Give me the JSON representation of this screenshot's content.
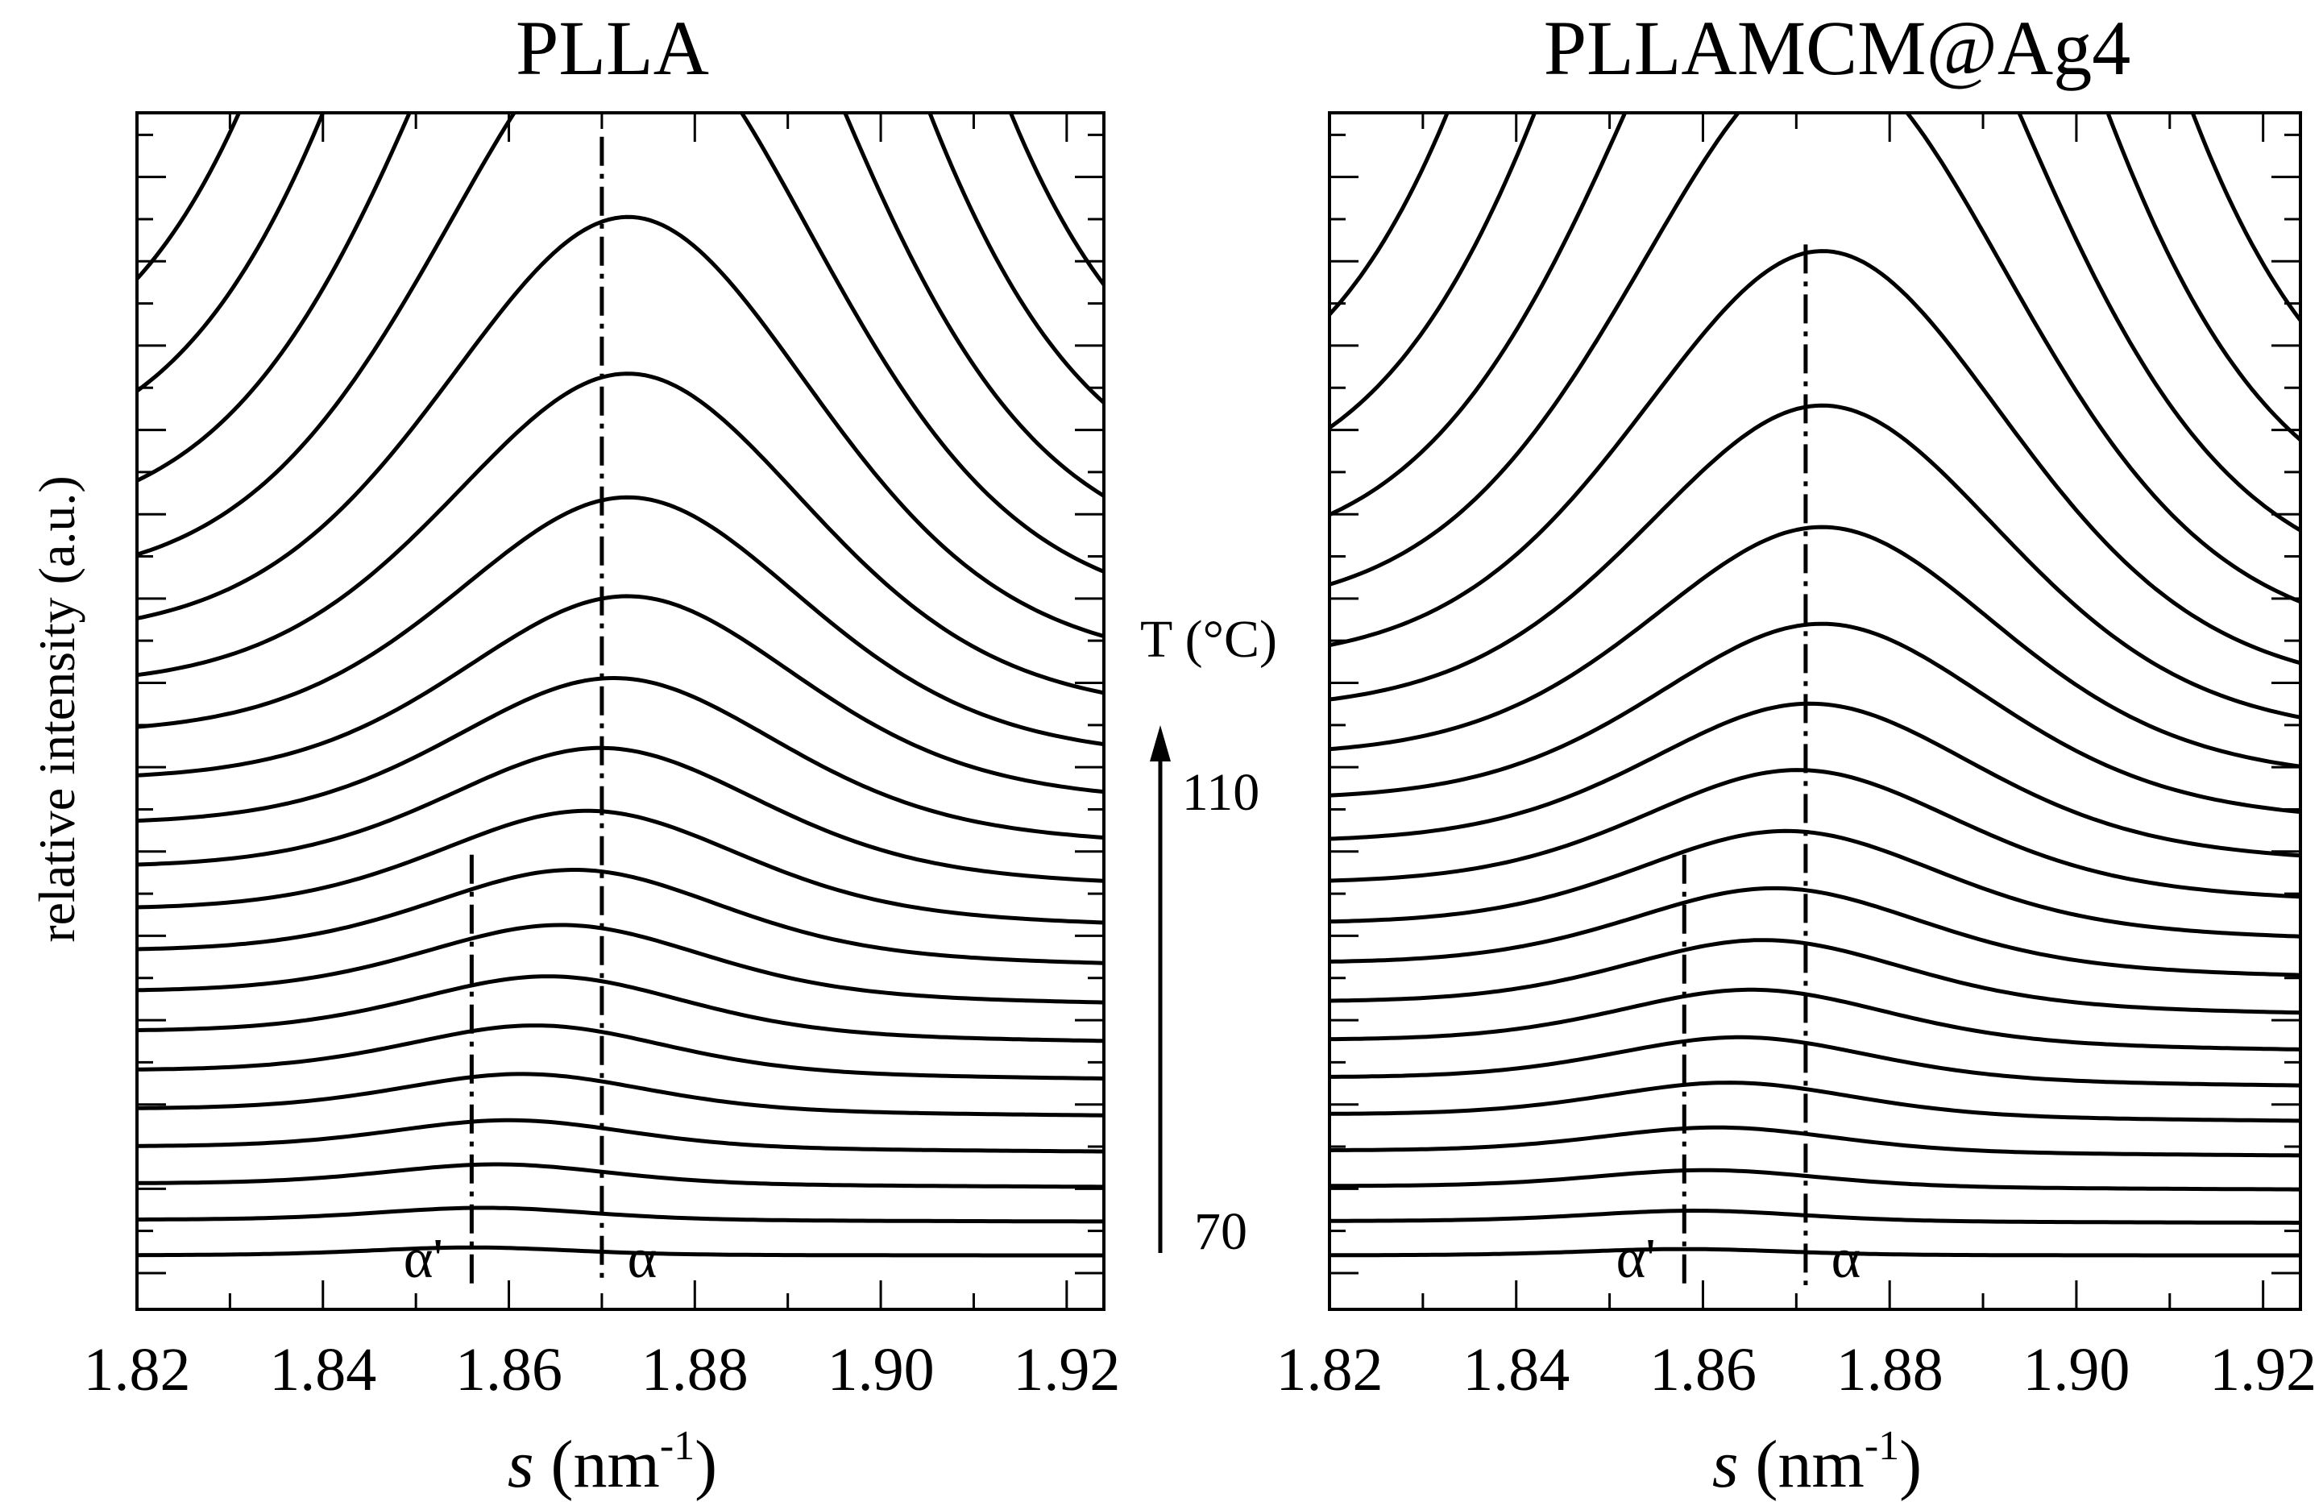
{
  "chart_data": [
    {
      "type": "line",
      "title": "PLLA",
      "xlabel_var": "s",
      "xlabel_unit": " (nm",
      "xlabel_exp": "-1",
      "xlabel_close": ")",
      "ylabel": "relative intensity (a.u.)",
      "xlim": [
        1.82,
        1.924
      ],
      "x_ticks": [
        "1.82",
        "1.84",
        "1.86",
        "1.88",
        "1.90",
        "1.92"
      ],
      "y_ticks_labeled": false,
      "grid": false,
      "curve_count": 20,
      "highlight_curve_index": 12,
      "highlight_color": "#ff0000",
      "markers": [
        {
          "label": "α'",
          "x": 1.856,
          "style": "dash-dot"
        },
        {
          "label": "α",
          "x": 1.87,
          "style": "dash-dot"
        }
      ],
      "series_shape": {
        "baseline_start": 0.045,
        "baseline_step": 0.028,
        "baseline_accel": 0.0018,
        "peak_x_start": 1.856,
        "peak_x_end": 1.873,
        "note_peak_heights": [
          0.005,
          0.008,
          0.013,
          0.018,
          0.024,
          0.031,
          0.038,
          0.046,
          0.056,
          0.068,
          0.082,
          0.1,
          0.125,
          0.16,
          0.21,
          0.28,
          0.38,
          0.52,
          0.72,
          1.0
        ]
      }
    },
    {
      "type": "line",
      "title": "PLLAMCM@Ag4",
      "xlabel_var": "s",
      "xlabel_unit": " (nm",
      "xlabel_exp": "-1",
      "xlabel_close": ")",
      "xlim": [
        1.82,
        1.924
      ],
      "x_ticks": [
        "1.82",
        "1.84",
        "1.86",
        "1.88",
        "1.90",
        "1.92"
      ],
      "y_ticks_labeled": false,
      "grid": false,
      "curve_count": 20,
      "highlight_curve_index": 11,
      "highlight_color": "#0000ff",
      "markers": [
        {
          "label": "α'",
          "x": 1.858,
          "style": "dash-dot"
        },
        {
          "label": "α",
          "x": 1.871,
          "style": "dash-dot"
        }
      ],
      "series_shape": {
        "baseline_start": 0.045,
        "baseline_step": 0.027,
        "baseline_accel": 0.0016,
        "peak_x_start": 1.858,
        "peak_x_end": 1.873,
        "note_peak_heights": [
          0.004,
          0.007,
          0.011,
          0.016,
          0.022,
          0.028,
          0.035,
          0.043,
          0.052,
          0.064,
          0.078,
          0.095,
          0.12,
          0.155,
          0.205,
          0.275,
          0.37,
          0.5,
          0.7,
          1.0
        ]
      }
    }
  ],
  "temperature_axis": {
    "label": "T (°C)",
    "low": "70",
    "high": "110"
  }
}
